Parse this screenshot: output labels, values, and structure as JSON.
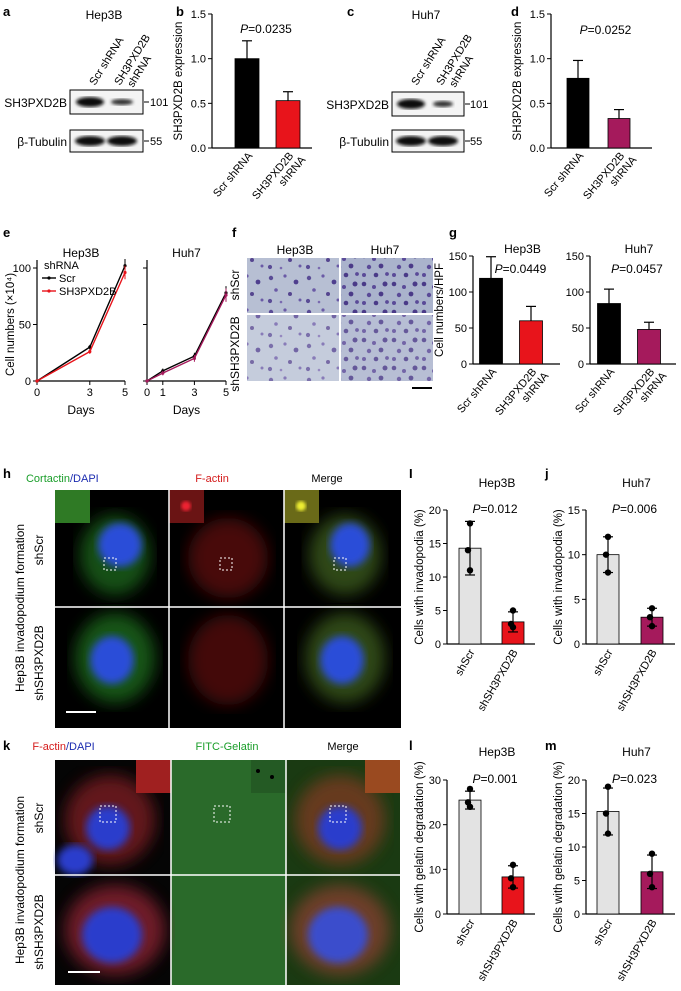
{
  "panels": {
    "a": "a",
    "b": "b",
    "c": "c",
    "d": "d",
    "e": "e",
    "f": "f",
    "g": "g",
    "h": "h",
    "i": "I",
    "j": "j",
    "k": "k",
    "l": "l",
    "m": "m"
  },
  "blot_a": {
    "title": "Hep3B",
    "col1": "Scr shRNA",
    "col2_line1": "SH3PXD2B",
    "col2_line2": "shRNA",
    "row1": "SH3PXD2B",
    "row2": "β-Tubulin",
    "mw1": "101",
    "mw2": "55"
  },
  "blot_c": {
    "title": "Huh7",
    "col1": "Scr shRNA",
    "col2_line1": "SH3PXD2B",
    "col2_line2": "shRNA",
    "row1": "SH3PXD2B",
    "row2": "β-Tubulin",
    "mw1": "101",
    "mw2": "55"
  },
  "colors": {
    "black": "#000000",
    "red": "#e8141b",
    "maroon": "#a51a5c",
    "grey": "#e3e3e3"
  },
  "chart_data": [
    {
      "id": "b",
      "type": "bar",
      "ylabel": "SH3PXD2B expression",
      "pvalue": "P=0.0235",
      "ylim": [
        0,
        1.5
      ],
      "yticks": [
        "0.0",
        "0.5",
        "1.0",
        "1.5"
      ],
      "categories": [
        "Scr shRNA",
        "SH3PXD2B shRNA"
      ],
      "cat_line1": [
        "Scr shRNA",
        "SH3PXD2B"
      ],
      "cat_line2": [
        "",
        "shRNA"
      ],
      "values": [
        1.0,
        0.53
      ],
      "errors": [
        0.2,
        0.1
      ],
      "colors": [
        "#000000",
        "#e8141b"
      ]
    },
    {
      "id": "d",
      "type": "bar",
      "ylabel": "SH3PXD2B expression",
      "pvalue": "P=0.0252",
      "ylim": [
        0,
        1.5
      ],
      "yticks": [
        "0.0",
        "0.5",
        "1.0",
        "1.5"
      ],
      "categories": [
        "Scr shRNA",
        "SH3PXD2B shRNA"
      ],
      "cat_line1": [
        "Scr shRNA",
        "SH3PXD2B"
      ],
      "cat_line2": [
        "",
        "shRNA"
      ],
      "values": [
        0.78,
        0.33
      ],
      "errors": [
        0.2,
        0.1
      ],
      "colors": [
        "#000000",
        "#a51a5c"
      ]
    },
    {
      "id": "e1",
      "type": "line",
      "title": "Hep3B",
      "ylabel": "Cell numbers (×10⁴)",
      "xlabel": "Days",
      "ylim": [
        0,
        100
      ],
      "yticks": [
        "0",
        "50",
        "100"
      ],
      "xlim": [
        0,
        5
      ],
      "xticks": [
        "0",
        "3",
        "5"
      ],
      "legend_title": "shRNA",
      "x": [
        0,
        3,
        5
      ],
      "series": [
        {
          "name": "Scr",
          "values": [
            0,
            30,
            102
          ],
          "errors": [
            0,
            2,
            6
          ],
          "color": "#000000"
        },
        {
          "name": "SH3PXD2B",
          "values": [
            0,
            26,
            96
          ],
          "errors": [
            0,
            2,
            6
          ],
          "color": "#e8141b"
        }
      ]
    },
    {
      "id": "e2",
      "type": "line",
      "title": "Huh7",
      "xlabel": "Days",
      "ylim": [
        0,
        100
      ],
      "xlim": [
        0,
        5
      ],
      "xticks": [
        "0",
        "1",
        "3",
        "5"
      ],
      "x": [
        0,
        1,
        3,
        5
      ],
      "series": [
        {
          "values": [
            0,
            9,
            22,
            78
          ],
          "errors": [
            0,
            2,
            3,
            6
          ],
          "color": "#000000"
        },
        {
          "values": [
            0,
            7,
            20,
            76
          ],
          "errors": [
            0,
            2,
            3,
            6
          ],
          "color": "#a51a5c"
        }
      ]
    },
    {
      "id": "g1",
      "type": "bar",
      "title": "Hep3B",
      "ylabel": "Cell numbers/HPF",
      "pvalue": "P=0.0449",
      "ylim": [
        0,
        150
      ],
      "yticks": [
        "0",
        "50",
        "100",
        "150"
      ],
      "categories": [
        "Scr shRNA",
        "SH3PXD2B shRNA"
      ],
      "cat_line1": [
        "Scr shRNA",
        "SH3PXD2B"
      ],
      "cat_line2": [
        "",
        "shRNA"
      ],
      "values": [
        119,
        60
      ],
      "errors": [
        30,
        20
      ],
      "colors": [
        "#000000",
        "#e8141b"
      ]
    },
    {
      "id": "g2",
      "type": "bar",
      "title": "Huh7",
      "pvalue": "P=0.0457",
      "ylim": [
        0,
        150
      ],
      "yticks": [
        "0",
        "50",
        "100",
        "150"
      ],
      "categories": [
        "Scr shRNA",
        "SH3PXD2B shRNA"
      ],
      "cat_line1": [
        "Scr shRNA",
        "SH3PXD2B"
      ],
      "cat_line2": [
        "",
        "shRNA"
      ],
      "values": [
        84,
        48
      ],
      "errors": [
        20,
        10
      ],
      "colors": [
        "#000000",
        "#a51a5c"
      ]
    },
    {
      "id": "i",
      "type": "bar",
      "title": "Hep3B",
      "ylabel": "Cells with invadopodia (%)",
      "pvalue": "P=0.012",
      "ylim": [
        0,
        20
      ],
      "yticks": [
        "0",
        "5",
        "10",
        "15",
        "20"
      ],
      "categories": [
        "shScr",
        "shSH3PXD2B"
      ],
      "values": [
        14.3,
        3.3
      ],
      "errors": [
        4,
        1.5
      ],
      "points": [
        [
          18,
          14,
          11
        ],
        [
          5,
          3,
          2.5
        ]
      ],
      "colors": [
        "#e3e3e3",
        "#e8141b"
      ]
    },
    {
      "id": "j",
      "type": "bar",
      "title": "Huh7",
      "ylabel": "Cells with invadopodia (%)",
      "pvalue": "P=0.006",
      "ylim": [
        0,
        15
      ],
      "yticks": [
        "0",
        "5",
        "10",
        "15"
      ],
      "categories": [
        "shScr",
        "shSH3PXD2B"
      ],
      "values": [
        10,
        3
      ],
      "errors": [
        2,
        1
      ],
      "points": [
        [
          12,
          10,
          8
        ],
        [
          4,
          3,
          2
        ]
      ],
      "colors": [
        "#e3e3e3",
        "#a51a5c"
      ]
    },
    {
      "id": "l",
      "type": "bar",
      "title": "Hep3B",
      "ylabel": "Cells with gelatin degradation (%)",
      "pvalue": "P=0.001",
      "ylim": [
        0,
        30
      ],
      "yticks": [
        "0",
        "10",
        "20",
        "30"
      ],
      "categories": [
        "shScr",
        "shSH3PXD2B"
      ],
      "values": [
        25.5,
        8.3
      ],
      "errors": [
        2,
        2.5
      ],
      "points": [
        [
          28,
          25,
          24
        ],
        [
          11,
          8,
          6
        ]
      ],
      "colors": [
        "#e3e3e3",
        "#e8141b"
      ]
    },
    {
      "id": "m",
      "type": "bar",
      "title": "Huh7",
      "ylabel": "Cells with gelatin degradation (%)",
      "pvalue": "P=0.023",
      "ylim": [
        0,
        20
      ],
      "yticks": [
        "0",
        "5",
        "10",
        "15",
        "20"
      ],
      "categories": [
        "shScr",
        "shSH3PXD2B"
      ],
      "values": [
        15.3,
        6.3
      ],
      "errors": [
        3.5,
        2.5
      ],
      "points": [
        [
          19,
          15,
          12
        ],
        [
          9,
          6,
          4
        ]
      ],
      "colors": [
        "#e3e3e3",
        "#a51a5c"
      ]
    }
  ],
  "panel_f": {
    "col1": "Hep3B",
    "col2": "Huh7",
    "row1": "shScr",
    "row2": "shSH3PXD2B"
  },
  "panel_h": {
    "col1_a": "Cortactin",
    "col1_b": "/DAPI",
    "col2": "F-actin",
    "col3": "Merge",
    "side": "Hep3B invadopodium formation",
    "row1": "shScr",
    "row2": "shSH3PXD2B"
  },
  "panel_k": {
    "col1_a": "F-actin",
    "col1_b": "/DAPI",
    "col2": "FITC-Gelatin",
    "col3": "Merge",
    "side": "Hep3B invadopodium formation",
    "row1": "shScr",
    "row2": "shSH3PXD2B"
  }
}
